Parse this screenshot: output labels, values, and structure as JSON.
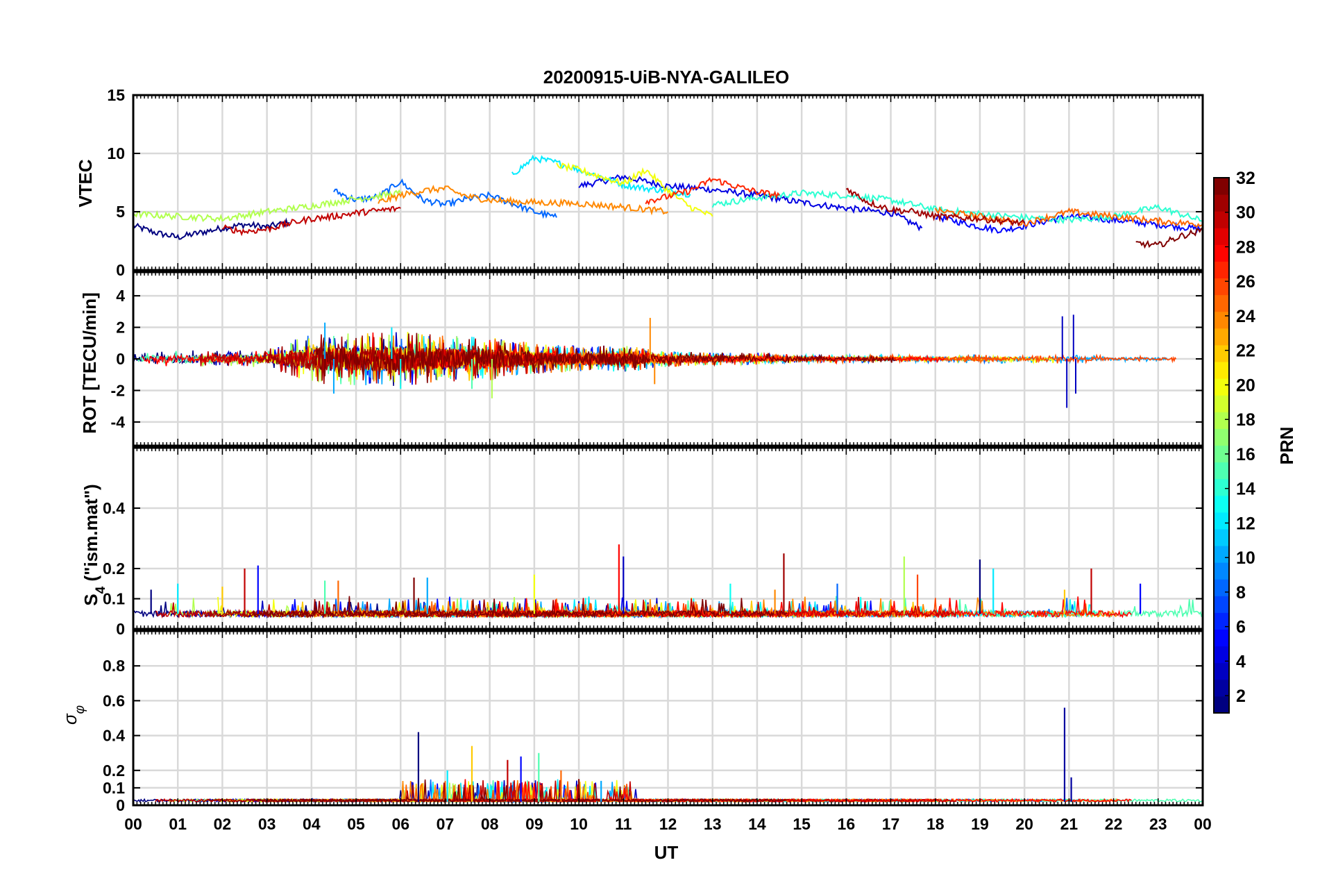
{
  "figure": {
    "title": "20200915-UiB-NYA-GALILEO",
    "xlabel": "UT"
  },
  "colorbar": {
    "label": "PRN",
    "min": 1,
    "max": 32,
    "ticks": [
      "2",
      "4",
      "6",
      "8",
      "10",
      "12",
      "14",
      "16",
      "18",
      "20",
      "22",
      "24",
      "26",
      "28",
      "30",
      "32"
    ],
    "colormap": "jet"
  },
  "chart_data": [
    {
      "type": "line",
      "panel": "vtec",
      "ylabel": "VTEC",
      "ylim": [
        0,
        15
      ],
      "yticks": [
        "0",
        "5",
        "10",
        "15"
      ],
      "xlim": [
        0,
        24
      ],
      "xticks": [
        "00",
        "01",
        "02",
        "03",
        "04",
        "05",
        "06",
        "07",
        "08",
        "09",
        "10",
        "11",
        "12",
        "13",
        "14",
        "15",
        "16",
        "17",
        "18",
        "19",
        "20",
        "21",
        "22",
        "23",
        "00"
      ],
      "grid": true,
      "series": [
        {
          "prn": 1,
          "x": [
            0,
            0.5,
            1,
            1.5,
            2,
            2.5,
            3,
            3.5
          ],
          "values": [
            3.8,
            3.2,
            2.8,
            3.2,
            3.6,
            3.9,
            3.7,
            4.1
          ]
        },
        {
          "prn": 4,
          "x": [
            10,
            11,
            12,
            13,
            14,
            15,
            16,
            17,
            17.7
          ],
          "values": [
            7.2,
            8.0,
            7.2,
            6.9,
            6.4,
            5.8,
            5.3,
            4.9,
            3.6
          ]
        },
        {
          "prn": 5,
          "x": [
            18,
            19,
            19.5,
            20,
            21,
            22,
            23,
            24
          ],
          "values": [
            4.6,
            3.7,
            3.4,
            3.8,
            4.6,
            4.3,
            3.9,
            3.5
          ]
        },
        {
          "prn": 8,
          "x": [
            4.5,
            5,
            5.5,
            6,
            6.5,
            7,
            7.5,
            8,
            8.5,
            9,
            9.5
          ],
          "values": [
            6.8,
            6.0,
            6.3,
            7.6,
            6.0,
            5.6,
            6.1,
            6.4,
            5.7,
            5.0,
            4.5
          ]
        },
        {
          "prn": 12,
          "x": [
            8.5,
            9,
            9.5,
            10,
            10.5,
            11,
            11.5,
            12,
            12.5
          ],
          "values": [
            8.2,
            9.6,
            9.2,
            8.6,
            8.0,
            7.3,
            7.0,
            6.8,
            6.5
          ]
        },
        {
          "prn": 14,
          "x": [
            13,
            14,
            15,
            16,
            17,
            18,
            19,
            20,
            21,
            22,
            23,
            24
          ],
          "values": [
            5.6,
            6.2,
            6.6,
            6.4,
            6.0,
            5.2,
            4.8,
            4.5,
            4.3,
            4.6,
            5.4,
            4.2
          ]
        },
        {
          "prn": 18,
          "x": [
            0,
            1,
            2,
            3,
            4,
            5,
            6
          ],
          "values": [
            4.8,
            4.6,
            4.4,
            5.0,
            5.5,
            6.1,
            6.6
          ]
        },
        {
          "prn": 20,
          "x": [
            9.5,
            10,
            10.5,
            11,
            11.5,
            12,
            12.5,
            13
          ],
          "values": [
            9.0,
            8.6,
            8.0,
            7.4,
            8.6,
            6.8,
            5.4,
            4.6
          ]
        },
        {
          "prn": 24,
          "x": [
            5.5,
            6,
            6.5,
            7,
            7.5,
            8,
            9,
            10,
            11,
            12
          ],
          "values": [
            5.8,
            6.4,
            6.8,
            7.0,
            6.3,
            6.0,
            5.8,
            5.7,
            5.4,
            5.0
          ]
        },
        {
          "prn": 25,
          "x": [
            18,
            19,
            20,
            21,
            22,
            23,
            24
          ],
          "values": [
            5.1,
            4.6,
            4.0,
            5.0,
            4.6,
            4.2,
            3.9
          ]
        },
        {
          "prn": 27,
          "x": [
            11.5,
            12,
            12.5,
            13,
            13.5,
            14,
            14.5
          ],
          "values": [
            5.9,
            6.3,
            6.8,
            7.8,
            7.2,
            6.7,
            6.4
          ]
        },
        {
          "prn": 30,
          "x": [
            2,
            2.5,
            3,
            3.5,
            4,
            4.5,
            5,
            5.5,
            6
          ],
          "values": [
            3.6,
            3.3,
            3.5,
            4.0,
            4.4,
            4.6,
            4.9,
            5.1,
            5.3
          ]
        },
        {
          "prn": 31,
          "x": [
            16,
            16.5,
            17,
            17.5,
            18,
            19,
            20
          ],
          "values": [
            7.0,
            5.8,
            5.2,
            5.0,
            4.6,
            4.4,
            4.0
          ]
        },
        {
          "prn": 32,
          "x": [
            22.5,
            23,
            23.5,
            24
          ],
          "values": [
            2.3,
            2.1,
            2.9,
            3.4
          ]
        }
      ]
    },
    {
      "type": "line",
      "panel": "rot",
      "ylabel": "ROT [TECU/min]",
      "ylim": [
        -5.5,
        5.5
      ],
      "yticks": [
        "-4",
        "-2",
        "0",
        "2",
        "4"
      ],
      "xlim": [
        0,
        24
      ],
      "grid": true,
      "noise_amplitude": [
        {
          "x": 0,
          "value": 0.3
        },
        {
          "x": 1,
          "value": 0.6
        },
        {
          "x": 2,
          "value": 0.5
        },
        {
          "x": 3,
          "value": 0.6
        },
        {
          "x": 4,
          "value": 1.6
        },
        {
          "x": 5,
          "value": 1.7
        },
        {
          "x": 6,
          "value": 1.8
        },
        {
          "x": 7,
          "value": 1.5
        },
        {
          "x": 8,
          "value": 1.4
        },
        {
          "x": 9,
          "value": 1.0
        },
        {
          "x": 10,
          "value": 0.8
        },
        {
          "x": 11,
          "value": 0.9
        },
        {
          "x": 12,
          "value": 0.5
        },
        {
          "x": 13,
          "value": 0.4
        },
        {
          "x": 14,
          "value": 0.4
        },
        {
          "x": 15,
          "value": 0.3
        },
        {
          "x": 16,
          "value": 0.25
        },
        {
          "x": 17,
          "value": 0.25
        },
        {
          "x": 18,
          "value": 0.25
        },
        {
          "x": 19,
          "value": 0.3
        },
        {
          "x": 20,
          "value": 0.25
        },
        {
          "x": 21,
          "value": 0.3
        },
        {
          "x": 22,
          "value": 0.2
        },
        {
          "x": 23,
          "value": 0.2
        },
        {
          "x": 24,
          "value": 0.15
        }
      ],
      "peaks": [
        {
          "x": 4.3,
          "value": 2.3
        },
        {
          "x": 4.5,
          "value": -2.2
        },
        {
          "x": 5.8,
          "value": 2.0
        },
        {
          "x": 6.0,
          "value": -1.9
        },
        {
          "x": 7.6,
          "value": -1.9
        },
        {
          "x": 8.05,
          "value": -2.5
        },
        {
          "x": 11.6,
          "value": 2.6
        },
        {
          "x": 11.7,
          "value": -1.6
        },
        {
          "x": 20.85,
          "value": 2.7
        },
        {
          "x": 20.95,
          "value": -3.1
        },
        {
          "x": 21.1,
          "value": 2.8
        },
        {
          "x": 21.15,
          "value": -2.2
        }
      ]
    },
    {
      "type": "line",
      "panel": "s4",
      "ylabel": "S4 (\"ism.mat\")",
      "ylim": [
        0,
        0.6
      ],
      "yticks": [
        "0",
        "0.1",
        "0.2",
        "0.4"
      ],
      "xlim": [
        0,
        24
      ],
      "grid": true,
      "baseline": 0.05,
      "peaks": [
        {
          "x": 0.4,
          "value": 0.13
        },
        {
          "x": 1.0,
          "value": 0.15
        },
        {
          "x": 2.0,
          "value": 0.14
        },
        {
          "x": 2.5,
          "value": 0.2
        },
        {
          "x": 2.8,
          "value": 0.21
        },
        {
          "x": 4.3,
          "value": 0.16
        },
        {
          "x": 4.6,
          "value": 0.16
        },
        {
          "x": 6.3,
          "value": 0.17
        },
        {
          "x": 6.6,
          "value": 0.17
        },
        {
          "x": 9.0,
          "value": 0.18
        },
        {
          "x": 10.9,
          "value": 0.28
        },
        {
          "x": 11.0,
          "value": 0.24
        },
        {
          "x": 13.4,
          "value": 0.15
        },
        {
          "x": 14.4,
          "value": 0.13
        },
        {
          "x": 14.6,
          "value": 0.25
        },
        {
          "x": 15.8,
          "value": 0.15
        },
        {
          "x": 17.3,
          "value": 0.24
        },
        {
          "x": 17.6,
          "value": 0.18
        },
        {
          "x": 19.0,
          "value": 0.23
        },
        {
          "x": 19.3,
          "value": 0.2
        },
        {
          "x": 20.9,
          "value": 0.13
        },
        {
          "x": 21.5,
          "value": 0.2
        },
        {
          "x": 22.6,
          "value": 0.15
        }
      ]
    },
    {
      "type": "line",
      "panel": "sigma_phi",
      "ylabel": "σφ",
      "ylim": [
        0,
        1
      ],
      "yticks": [
        "0",
        "0.1",
        "0.2",
        "0.4",
        "0.6",
        "0.8"
      ],
      "xlim": [
        0,
        24
      ],
      "grid": true,
      "baseline": 0.02,
      "peaks": [
        {
          "x": 6.4,
          "value": 0.42
        },
        {
          "x": 7.05,
          "value": 0.2
        },
        {
          "x": 7.6,
          "value": 0.34
        },
        {
          "x": 8.4,
          "value": 0.26
        },
        {
          "x": 8.7,
          "value": 0.28
        },
        {
          "x": 9.1,
          "value": 0.3
        },
        {
          "x": 9.6,
          "value": 0.2
        },
        {
          "x": 10.0,
          "value": 0.15
        },
        {
          "x": 10.5,
          "value": 0.14
        },
        {
          "x": 20.9,
          "value": 0.56
        },
        {
          "x": 21.05,
          "value": 0.16
        }
      ]
    }
  ]
}
